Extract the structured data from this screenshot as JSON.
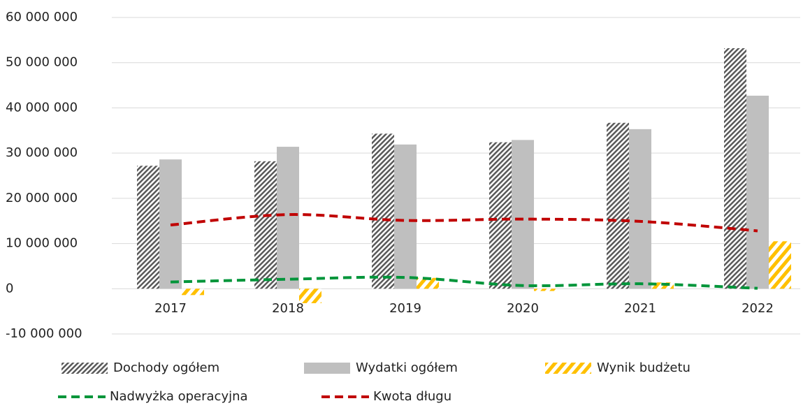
{
  "chart_data": {
    "type": "combo",
    "categories": [
      "2017",
      "2018",
      "2019",
      "2020",
      "2021",
      "2022"
    ],
    "series": [
      {
        "name": "Dochody ogółem",
        "type": "bar",
        "pattern": "hatch",
        "color": "#595959",
        "values": [
          27200000,
          28200000,
          34300000,
          32400000,
          36700000,
          53200000
        ]
      },
      {
        "name": "Wydatki ogółem",
        "type": "bar",
        "pattern": "solid",
        "color": "#bfbfbf",
        "values": [
          28600000,
          31400000,
          31900000,
          32900000,
          35300000,
          42700000
        ]
      },
      {
        "name": "Wynik budżetu",
        "type": "bar",
        "pattern": "hatch",
        "color": "#ffc000",
        "values": [
          -1400000,
          -3200000,
          2400000,
          -500000,
          1400000,
          10500000
        ]
      },
      {
        "name": "Nadwyżka operacyjna",
        "type": "line",
        "color": "#00953a",
        "values": [
          1500000,
          2100000,
          2500000,
          700000,
          1100000,
          100000
        ]
      },
      {
        "name": "Kwota długu",
        "type": "line",
        "color": "#c00000",
        "values": [
          14100000,
          16400000,
          15100000,
          15400000,
          14900000,
          12800000
        ]
      }
    ],
    "ylim": [
      -10000000,
      60000000
    ],
    "yticks": [
      {
        "value": -10000000,
        "label": "-10 000 000"
      },
      {
        "value": 0,
        "label": "0"
      },
      {
        "value": 10000000,
        "label": "10 000 000"
      },
      {
        "value": 20000000,
        "label": "20 000 000"
      },
      {
        "value": 30000000,
        "label": "30 000 000"
      },
      {
        "value": 40000000,
        "label": "40 000 000"
      },
      {
        "value": 50000000,
        "label": "50 000 000"
      },
      {
        "value": 60000000,
        "label": "60 000 000"
      }
    ],
    "grid": true,
    "legend": "bottom"
  }
}
